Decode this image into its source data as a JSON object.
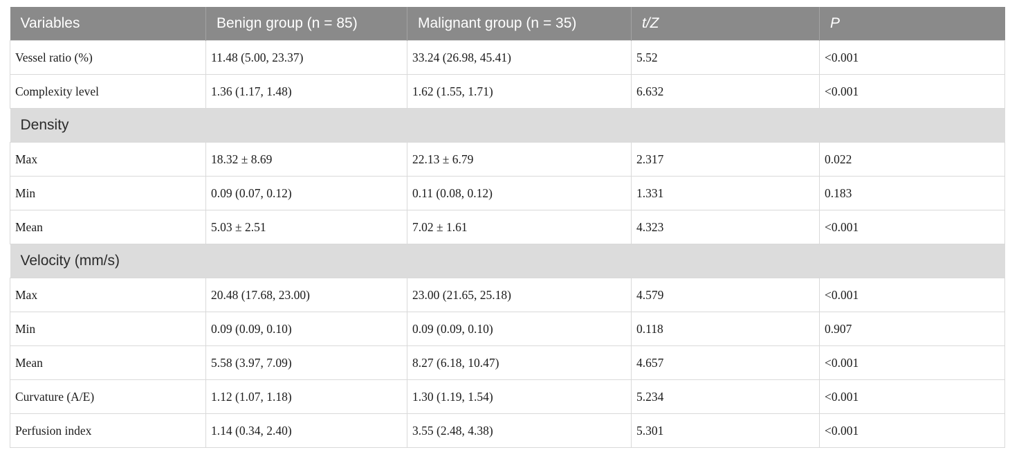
{
  "table": {
    "columns": [
      {
        "label": "Variables",
        "italic": false
      },
      {
        "label": "Benign group (n = 85)",
        "italic": false
      },
      {
        "label": "Malignant group (n = 35)",
        "italic": false
      },
      {
        "label": "t/Z",
        "italic": true
      },
      {
        "label": "P",
        "italic": true
      }
    ],
    "rows": [
      {
        "type": "data",
        "cells": [
          "Vessel ratio (%)",
          "11.48 (5.00, 23.37)",
          "33.24 (26.98, 45.41)",
          "5.52",
          "<0.001"
        ]
      },
      {
        "type": "data",
        "cells": [
          "Complexity level",
          "1.36 (1.17, 1.48)",
          "1.62 (1.55, 1.71)",
          "6.632",
          "<0.001"
        ]
      },
      {
        "type": "section",
        "label": "Density"
      },
      {
        "type": "data",
        "cells": [
          "Max",
          "18.32 ± 8.69",
          "22.13 ± 6.79",
          "2.317",
          "0.022"
        ]
      },
      {
        "type": "data",
        "cells": [
          "Min",
          "0.09 (0.07, 0.12)",
          "0.11 (0.08, 0.12)",
          "1.331",
          "0.183"
        ]
      },
      {
        "type": "data",
        "cells": [
          "Mean",
          "5.03 ± 2.51",
          "7.02 ± 1.61",
          "4.323",
          "<0.001"
        ]
      },
      {
        "type": "section",
        "label": "Velocity (mm/s)"
      },
      {
        "type": "data",
        "cells": [
          "Max",
          "20.48 (17.68, 23.00)",
          "23.00 (21.65, 25.18)",
          "4.579",
          "<0.001"
        ]
      },
      {
        "type": "data",
        "cells": [
          "Min",
          "0.09 (0.09, 0.10)",
          "0.09 (0.09, 0.10)",
          "0.118",
          "0.907"
        ]
      },
      {
        "type": "data",
        "cells": [
          "Mean",
          "5.58 (3.97, 7.09)",
          "8.27 (6.18, 10.47)",
          "4.657",
          "<0.001"
        ]
      },
      {
        "type": "data",
        "cells": [
          "Curvature (A/E)",
          "1.12 (1.07, 1.18)",
          "1.30 (1.19, 1.54)",
          "5.234",
          "<0.001"
        ]
      },
      {
        "type": "data",
        "cells": [
          "Perfusion index",
          "1.14 (0.34, 2.40)",
          "3.55 (2.48, 4.38)",
          "5.301",
          "<0.001"
        ]
      }
    ],
    "colors": {
      "header_bg": "#8a8a8a",
      "header_text": "#ffffff",
      "header_divider": "#a3a3a3",
      "section_bg": "#dcdcdc",
      "body_text": "#1b1b1b",
      "cell_border": "#d9d9d9"
    }
  },
  "chart_data": {
    "type": "table",
    "title": "",
    "columns": [
      "Variables",
      "Benign group (n = 85)",
      "Malignant group (n = 35)",
      "t/Z",
      "P"
    ],
    "sections": [
      {
        "name": null,
        "rows": [
          [
            "Vessel ratio (%)",
            "11.48 (5.00, 23.37)",
            "33.24 (26.98, 45.41)",
            "5.52",
            "<0.001"
          ],
          [
            "Complexity level",
            "1.36 (1.17, 1.48)",
            "1.62 (1.55, 1.71)",
            "6.632",
            "<0.001"
          ]
        ]
      },
      {
        "name": "Density",
        "rows": [
          [
            "Max",
            "18.32 ± 8.69",
            "22.13 ± 6.79",
            "2.317",
            "0.022"
          ],
          [
            "Min",
            "0.09 (0.07, 0.12)",
            "0.11 (0.08, 0.12)",
            "1.331",
            "0.183"
          ],
          [
            "Mean",
            "5.03 ± 2.51",
            "7.02 ± 1.61",
            "4.323",
            "<0.001"
          ]
        ]
      },
      {
        "name": "Velocity (mm/s)",
        "rows": [
          [
            "Max",
            "20.48 (17.68, 23.00)",
            "23.00 (21.65, 25.18)",
            "4.579",
            "<0.001"
          ],
          [
            "Min",
            "0.09 (0.09, 0.10)",
            "0.09 (0.09, 0.10)",
            "0.118",
            "0.907"
          ],
          [
            "Mean",
            "5.58 (3.97, 7.09)",
            "8.27 (6.18, 10.47)",
            "4.657",
            "<0.001"
          ],
          [
            "Curvature (A/E)",
            "1.12 (1.07, 1.18)",
            "1.30 (1.19, 1.54)",
            "5.234",
            "<0.001"
          ],
          [
            "Perfusion index",
            "1.14 (0.34, 2.40)",
            "3.55 (2.48, 4.38)",
            "5.301",
            "<0.001"
          ]
        ]
      }
    ]
  }
}
